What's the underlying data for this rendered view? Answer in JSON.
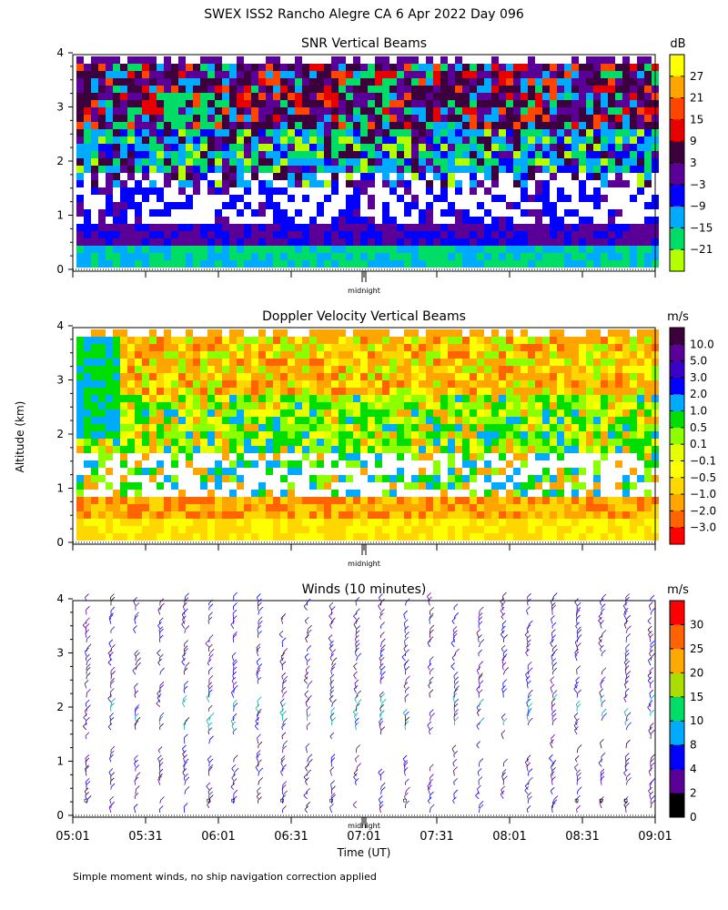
{
  "header": {
    "title": "SWEX ISS2 Rancho Alegre CA    6 Apr 2022 Day 096"
  },
  "axes": {
    "ylabel": "Altitude (km)",
    "xlabel": "Time (UT)",
    "yticks": [
      "0",
      "1",
      "2",
      "3",
      "4"
    ],
    "xticks": [
      "05:01",
      "05:31",
      "06:01",
      "06:31",
      "07:01",
      "07:31",
      "08:01",
      "08:31",
      "09:01"
    ],
    "midnight_label": "midnight"
  },
  "footnote": "Simple moment winds, no ship navigation correction applied",
  "chart_data": [
    {
      "type": "heatmap",
      "title": "SNR Vertical Beams",
      "colorbar_unit": "dB",
      "colorbar_ticks": [
        "27",
        "21",
        "15",
        "9",
        "3",
        "−3",
        "−9",
        "−15",
        "−21"
      ],
      "colorbar_colors": [
        "#ffff00",
        "#ffa500",
        "#ff4500",
        "#e60000",
        "#3c003c",
        "#5a0096",
        "#0000ff",
        "#00aaff",
        "#00dd66",
        "#b4ff00"
      ],
      "x_range": [
        "05:01",
        "09:01"
      ],
      "ylim": [
        0,
        4
      ],
      "colors": {
        "no_data": "#ffffff"
      }
    },
    {
      "type": "heatmap",
      "title": "Doppler Velocity Vertical Beams",
      "colorbar_unit": "m/s",
      "colorbar_ticks": [
        "10.0",
        "5.0",
        "3.0",
        "2.0",
        "1.0",
        "0.5",
        "0.1",
        "−0.1",
        "−0.5",
        "−1.0",
        "−2.0",
        "−3.0"
      ],
      "colorbar_colors": [
        "#3c003c",
        "#5a0096",
        "#3a00c8",
        "#0000ff",
        "#00aaff",
        "#00dd00",
        "#8cff00",
        "#e6ff00",
        "#ffff00",
        "#ffd700",
        "#ffa500",
        "#ff6400",
        "#ff0000"
      ],
      "x_range": [
        "05:01",
        "09:01"
      ],
      "ylim": [
        0,
        4
      ],
      "colors": {
        "no_data": "#ffffff"
      }
    },
    {
      "type": "wind_barbs",
      "title": "Winds (10 minutes)",
      "colorbar_unit": "m/s",
      "colorbar_ticks": [
        "30",
        "25",
        "20",
        "15",
        "10",
        "8",
        "4",
        "2",
        "0"
      ],
      "colorbar_colors": [
        "#ff0000",
        "#ff6400",
        "#ffaa00",
        "#aadd00",
        "#00dd66",
        "#00aaff",
        "#0000ff",
        "#5a0096",
        "#000000"
      ],
      "x_range": [
        "05:01",
        "09:01"
      ],
      "ylim": [
        0,
        4
      ],
      "profiles_per_hour": 6
    }
  ]
}
